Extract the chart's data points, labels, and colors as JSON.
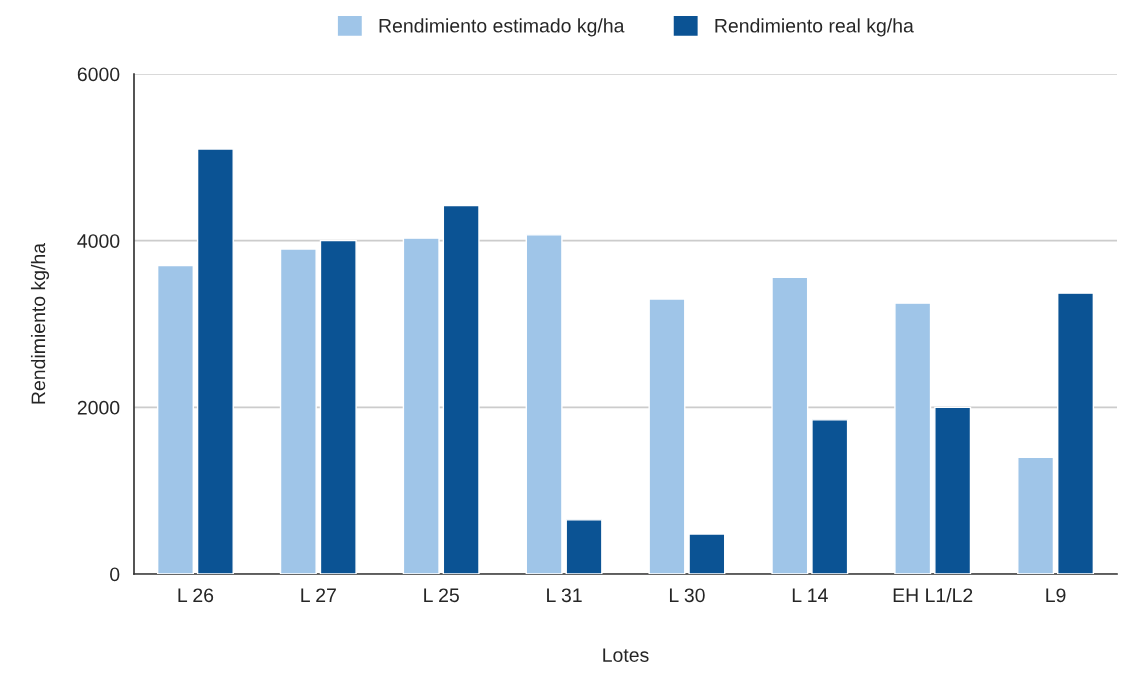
{
  "chart_data": {
    "type": "bar",
    "xlabel": "Lotes",
    "ylabel": "Rendimiento kg/ha",
    "categories": [
      "L 26",
      "L 27",
      "L 25",
      "L 31",
      "L 30",
      "L 14",
      "EH L1/L2",
      "L9"
    ],
    "series": [
      {
        "name": "Rendimiento estimado kg/ha",
        "color": "#9fc5e8",
        "values": [
          3700,
          3900,
          4030,
          4070,
          3300,
          3560,
          3250,
          1400
        ]
      },
      {
        "name": "Rendimiento real kg/ha",
        "color": "#0b5394",
        "values": [
          5100,
          4000,
          4420,
          650,
          480,
          1850,
          2000,
          3370
        ]
      }
    ],
    "ylim": [
      0,
      6000
    ],
    "yticks": [
      0,
      2000,
      4000,
      6000
    ],
    "grid": "y",
    "legend": "top"
  }
}
